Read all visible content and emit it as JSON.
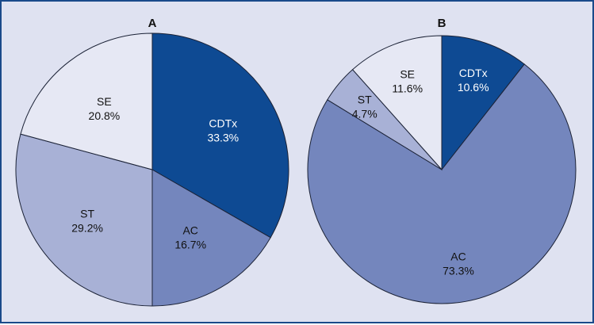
{
  "chart_data": [
    {
      "type": "pie",
      "title": "A",
      "start": "12 o'clock",
      "direction": "clockwise",
      "slices": [
        {
          "label": "CDTx",
          "value": 33.3,
          "value_text": "33.3%",
          "color": "#0e4a93",
          "text_color": "#ffffff"
        },
        {
          "label": "AC",
          "value": 16.7,
          "value_text": "16.7%",
          "color": "#7486bd",
          "text_color": "#111111"
        },
        {
          "label": "ST",
          "value": 29.2,
          "value_text": "29.2%",
          "color": "#a8b1d6",
          "text_color": "#111111"
        },
        {
          "label": "SE",
          "value": 20.8,
          "value_text": "20.8%",
          "color": "#e6e8f4",
          "text_color": "#111111"
        }
      ]
    },
    {
      "type": "pie",
      "title": "B",
      "start": "12 o'clock",
      "direction": "clockwise",
      "slices": [
        {
          "label": "CDTx",
          "value": 10.6,
          "value_text": "10.6%",
          "color": "#0e4a93",
          "text_color": "#ffffff"
        },
        {
          "label": "AC",
          "value": 73.3,
          "value_text": "73.3%",
          "color": "#7486bd",
          "text_color": "#111111"
        },
        {
          "label": "ST",
          "value": 4.7,
          "value_text": "4.7%",
          "color": "#a8b1d6",
          "text_color": "#111111"
        },
        {
          "label": "SE",
          "value": 11.6,
          "value_text": "11.6%",
          "color": "#e6e8f4",
          "text_color": "#111111"
        }
      ]
    }
  ]
}
